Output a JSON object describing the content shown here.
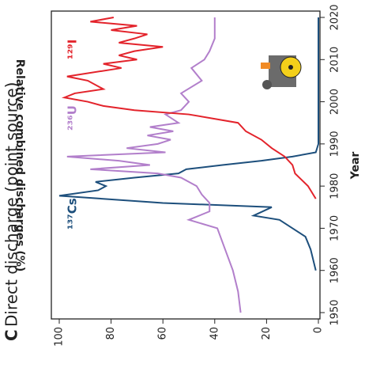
{
  "chart_data": {
    "type": "line",
    "panel_label": "C",
    "title": "Direct discharge (point source)",
    "xlabel": "Year",
    "ylabel": "Relative combined discharges (%)",
    "xlim": [
      1950,
      2020
    ],
    "xticks": [
      1950,
      1960,
      1970,
      1980,
      1990,
      2000,
      2010,
      2020
    ],
    "ylim": [
      0,
      100
    ],
    "yticks": [
      0,
      20,
      40,
      60,
      80,
      100
    ],
    "series": [
      {
        "name": "¹³⁷Cs",
        "color": "#1d4f7c",
        "x": [
          1960,
          1965,
          1968,
          1970,
          1972,
          1973,
          1975,
          1976,
          1977.7,
          1979,
          1980,
          1981,
          1982,
          1983,
          1984,
          1985,
          1986,
          1987,
          1988,
          1990,
          2020
        ],
        "values": [
          1,
          3,
          5,
          10,
          15,
          25,
          18,
          60,
          100,
          85,
          82,
          86,
          71,
          54,
          51,
          37,
          22,
          10,
          1,
          0,
          0
        ]
      },
      {
        "name": "²³⁶U",
        "color": "#b27fcb",
        "x": [
          1950,
          1955,
          1960,
          1965,
          1970,
          1972,
          1974,
          1976,
          1978,
          1980,
          1982,
          1983,
          1984,
          1985,
          1986,
          1987,
          1988,
          1989,
          1990,
          1991,
          1992,
          1993,
          1994,
          1995,
          1997,
          1998,
          2000,
          2002,
          2005,
          2008,
          2010,
          2012,
          2015,
          2020
        ],
        "values": [
          30,
          31,
          33,
          36,
          39,
          50,
          42,
          42,
          45,
          47,
          53,
          62,
          88,
          65,
          77,
          97,
          59,
          74,
          62,
          57,
          66,
          56,
          65,
          54,
          59,
          53,
          50,
          53,
          45,
          49,
          44,
          42,
          40,
          40
        ]
      },
      {
        "name": "¹²⁹I",
        "color": "#e3232b",
        "x": [
          1977,
          1980,
          1983,
          1985,
          1987,
          1989,
          1991,
          1993,
          1995,
          1997,
          1998,
          1999,
          2000,
          2001,
          2002,
          2003,
          2005,
          2006,
          2008,
          2009,
          2010,
          2011,
          2012,
          2013,
          2014,
          2015,
          2016,
          2017,
          2018,
          2019,
          2020
        ],
        "values": [
          1,
          4,
          9,
          10,
          13,
          18,
          22,
          28,
          31,
          50,
          71,
          83,
          89,
          98,
          94,
          83,
          89,
          97,
          76,
          83,
          70,
          77,
          71,
          60,
          77,
          71,
          66,
          80,
          70,
          88,
          79
        ]
      }
    ]
  }
}
